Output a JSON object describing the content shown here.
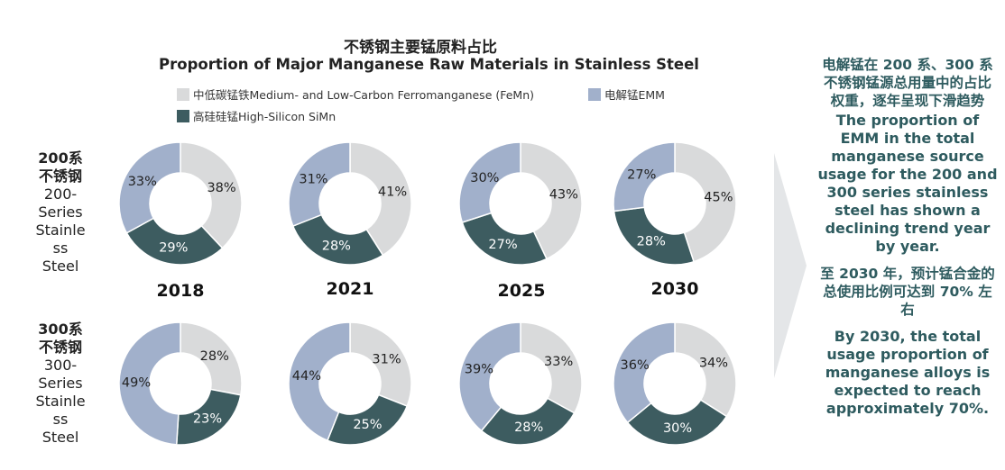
{
  "title_cn": "不锈钢主要锰原料占比",
  "title_en": "Proportion of Major Manganese Raw Materials in Stainless Steel",
  "legend": [
    {
      "label": "中低碳锰铁Medium- and Low-Carbon Ferromanganese (FeMn)",
      "color": "#d9dadb"
    },
    {
      "label": "电解锰EMM",
      "color": "#a1b0cb"
    },
    {
      "label": "高硅硅锰High-Silicon SiMn",
      "color": "#3d5c60"
    }
  ],
  "row_labels": [
    {
      "cn": "200系\n不锈钢",
      "en": "200-\nSeries\nStainle\nss\nSteel"
    },
    {
      "cn": "300系\n不锈钢",
      "en": "300-\nSeries\nStainle\nss\nSteel"
    }
  ],
  "years": [
    "2018",
    "2021",
    "2025",
    "2030"
  ],
  "chart_data": {
    "type": "pie",
    "variant": "donut",
    "title": "Proportion of Major Manganese Raw Materials in Stainless Steel",
    "categories": [
      "Medium- and Low-Carbon Ferromanganese (FeMn)",
      "High-Silicon SiMn",
      "EMM"
    ],
    "unit": "%",
    "series": [
      {
        "name": "200-Series Stainless Steel",
        "year": "2018",
        "values": [
          38,
          29,
          33
        ]
      },
      {
        "name": "200-Series Stainless Steel",
        "year": "2021",
        "values": [
          41,
          28,
          31
        ]
      },
      {
        "name": "200-Series Stainless Steel",
        "year": "2025",
        "values": [
          43,
          27,
          30
        ]
      },
      {
        "name": "200-Series Stainless Steel",
        "year": "2030",
        "values": [
          45,
          28,
          27
        ]
      },
      {
        "name": "300-Series Stainless Steel",
        "year": "2018",
        "values": [
          28,
          23,
          49
        ]
      },
      {
        "name": "300-Series Stainless Steel",
        "year": "2021",
        "values": [
          31,
          25,
          44
        ]
      },
      {
        "name": "300-Series Stainless Steel",
        "year": "2025",
        "values": [
          33,
          28,
          39
        ]
      },
      {
        "name": "300-Series Stainless Steel",
        "year": "2030",
        "values": [
          34,
          30,
          36
        ]
      }
    ],
    "colors": [
      "#d9dadb",
      "#3d5c60",
      "#a1b0cb"
    ]
  },
  "side_text": {
    "p1_cn": "电解锰在 200 系、300 系不锈钢锰源总用量中的占比权重，逐年呈现下滑趋势",
    "p1_en": "The proportion of EMM in the total manganese source usage for the 200 and 300 series stainless steel has shown a declining trend year by year.",
    "p2_cn": "至 2030 年，预计锰合金的总使用比例可达到 70% 左右",
    "p2_en": "By 2030, the total usage proportion of manganese alloys is expected to reach approximately 70%."
  }
}
